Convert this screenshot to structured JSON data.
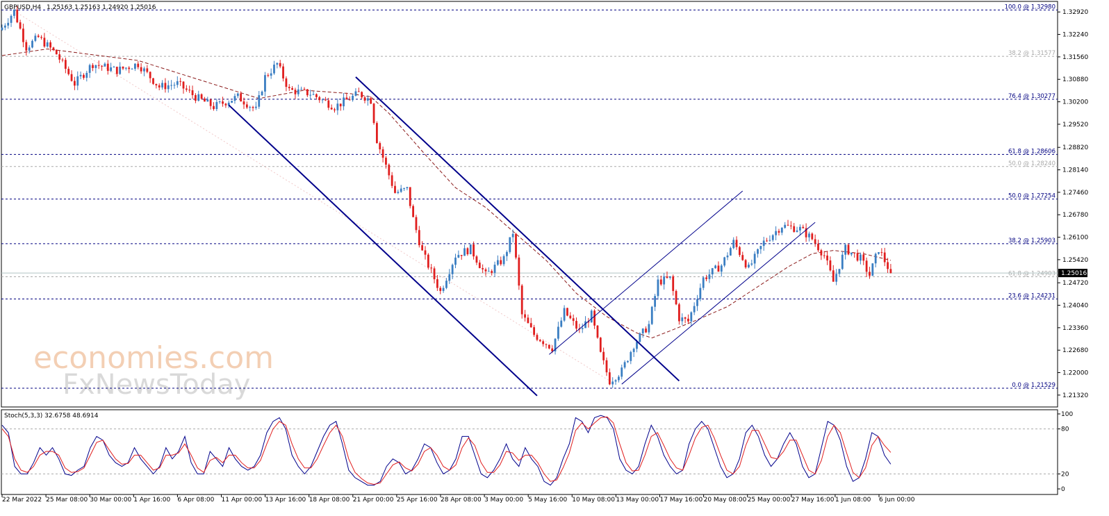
{
  "header": {
    "symbol_tf": "GBPUSD,H4",
    "ohlc": "1.25163 1.25163 1.24920 1.25016"
  },
  "watermark": {
    "line1": "economies.com",
    "line2": "FxNewsToday"
  },
  "colors": {
    "bull": "#3a7ec2",
    "bear": "#e01e1e",
    "ma": "#8b1a1a",
    "channel": "#00008b",
    "fib_blue": "#000080",
    "fib_gray": "#a9a9a9",
    "stoch_main": "#00008b",
    "stoch_signal": "#e01e1e"
  },
  "chart_data": [
    {
      "type": "candlestick",
      "title": "GBPUSD,H4",
      "ylim": [
        1.2096,
        1.3324
      ],
      "y_ticks": [
        "1.32920",
        "1.32240",
        "1.31560",
        "1.30880",
        "1.30200",
        "1.29520",
        "1.28820",
        "1.28140",
        "1.27460",
        "1.26780",
        "1.26100",
        "1.25420",
        "1.24720",
        "1.24040",
        "1.23360",
        "1.22680",
        "1.22000",
        "1.21320"
      ],
      "current_price": "1.25016",
      "x_labels": [
        "22 Mar 2022",
        "25 Mar 08:00",
        "30 Mar 00:00",
        "1 Apr 16:00",
        "6 Apr 08:00",
        "11 Apr 00:00",
        "13 Apr 16:00",
        "18 Apr 08:00",
        "21 Apr 00:00",
        "25 Apr 16:00",
        "28 Apr 08:00",
        "3 May 00:00",
        "5 May 16:00",
        "10 May 08:00",
        "13 May 00:00",
        "17 May 16:00",
        "20 May 08:00",
        "25 May 00:00",
        "27 May 16:00",
        "1 Jun 08:00",
        "6 Jun 00:00"
      ],
      "close_path": [
        {
          "bar": 0,
          "close": 1.3245
        },
        {
          "bar": 4,
          "close": 1.3295
        },
        {
          "bar": 8,
          "close": 1.3185
        },
        {
          "bar": 12,
          "close": 1.3215
        },
        {
          "bar": 18,
          "close": 1.3165
        },
        {
          "bar": 24,
          "close": 1.3075
        },
        {
          "bar": 30,
          "close": 1.3135
        },
        {
          "bar": 38,
          "close": 1.3115
        },
        {
          "bar": 45,
          "close": 1.3135
        },
        {
          "bar": 52,
          "close": 1.3065
        },
        {
          "bar": 58,
          "close": 1.3075
        },
        {
          "bar": 64,
          "close": 1.3035
        },
        {
          "bar": 70,
          "close": 1.3005
        },
        {
          "bar": 78,
          "close": 1.3035
        },
        {
          "bar": 84,
          "close": 1.2995
        },
        {
          "bar": 87,
          "close": 1.3095
        },
        {
          "bar": 91,
          "close": 1.3135
        },
        {
          "bar": 95,
          "close": 1.3055
        },
        {
          "bar": 102,
          "close": 1.3045
        },
        {
          "bar": 110,
          "close": 1.3005
        },
        {
          "bar": 118,
          "close": 1.3045
        },
        {
          "bar": 122,
          "close": 1.3025
        },
        {
          "bar": 124,
          "close": 1.2905
        },
        {
          "bar": 127,
          "close": 1.2825
        },
        {
          "bar": 130,
          "close": 1.2745
        },
        {
          "bar": 134,
          "close": 1.2755
        },
        {
          "bar": 136,
          "close": 1.2665
        },
        {
          "bar": 139,
          "close": 1.2565
        },
        {
          "bar": 145,
          "close": 1.2445
        },
        {
          "bar": 150,
          "close": 1.2555
        },
        {
          "bar": 155,
          "close": 1.2575
        },
        {
          "bar": 160,
          "close": 1.2495
        },
        {
          "bar": 166,
          "close": 1.2545
        },
        {
          "bar": 169,
          "close": 1.2625
        },
        {
          "bar": 172,
          "close": 1.2375
        },
        {
          "bar": 176,
          "close": 1.2315
        },
        {
          "bar": 182,
          "close": 1.2275
        },
        {
          "bar": 186,
          "close": 1.2385
        },
        {
          "bar": 191,
          "close": 1.2325
        },
        {
          "bar": 195,
          "close": 1.2375
        },
        {
          "bar": 198,
          "close": 1.2255
        },
        {
          "bar": 201,
          "close": 1.2175
        },
        {
          "bar": 205,
          "close": 1.2205
        },
        {
          "bar": 209,
          "close": 1.2285
        },
        {
          "bar": 214,
          "close": 1.2345
        },
        {
          "bar": 217,
          "close": 1.2475
        },
        {
          "bar": 221,
          "close": 1.2485
        },
        {
          "bar": 224,
          "close": 1.2365
        },
        {
          "bar": 227,
          "close": 1.2355
        },
        {
          "bar": 232,
          "close": 1.2485
        },
        {
          "bar": 238,
          "close": 1.2525
        },
        {
          "bar": 242,
          "close": 1.2595
        },
        {
          "bar": 247,
          "close": 1.2515
        },
        {
          "bar": 252,
          "close": 1.2595
        },
        {
          "bar": 258,
          "close": 1.2645
        },
        {
          "bar": 264,
          "close": 1.2635
        },
        {
          "bar": 268,
          "close": 1.2605
        },
        {
          "bar": 272,
          "close": 1.2555
        },
        {
          "bar": 275,
          "close": 1.2475
        },
        {
          "bar": 279,
          "close": 1.2575
        },
        {
          "bar": 284,
          "close": 1.2545
        },
        {
          "bar": 287,
          "close": 1.2495
        },
        {
          "bar": 290,
          "close": 1.2575
        },
        {
          "bar": 294,
          "close": 1.25016
        }
      ],
      "moving_average": [
        {
          "bar": 0,
          "value": 1.316
        },
        {
          "bar": 15,
          "value": 1.318
        },
        {
          "bar": 45,
          "value": 1.3145
        },
        {
          "bar": 85,
          "value": 1.303
        },
        {
          "bar": 100,
          "value": 1.3055
        },
        {
          "bar": 115,
          "value": 1.3045
        },
        {
          "bar": 122,
          "value": 1.3035
        },
        {
          "bar": 128,
          "value": 1.2985
        },
        {
          "bar": 140,
          "value": 1.286
        },
        {
          "bar": 150,
          "value": 1.276
        },
        {
          "bar": 160,
          "value": 1.27
        },
        {
          "bar": 170,
          "value": 1.262
        },
        {
          "bar": 180,
          "value": 1.254
        },
        {
          "bar": 190,
          "value": 1.244
        },
        {
          "bar": 200,
          "value": 1.237
        },
        {
          "bar": 210,
          "value": 1.232
        },
        {
          "bar": 215,
          "value": 1.2305
        },
        {
          "bar": 222,
          "value": 1.233
        },
        {
          "bar": 230,
          "value": 1.236
        },
        {
          "bar": 240,
          "value": 1.24
        },
        {
          "bar": 250,
          "value": 1.246
        },
        {
          "bar": 260,
          "value": 1.252
        },
        {
          "bar": 268,
          "value": 1.256
        },
        {
          "bar": 275,
          "value": 1.257
        },
        {
          "bar": 285,
          "value": 1.256
        },
        {
          "bar": 294,
          "value": 1.254
        }
      ],
      "trendlines": [
        {
          "from": {
            "bar": 75,
            "price": 1.301
          },
          "to": {
            "bar": 177,
            "price": 1.213
          }
        },
        {
          "from": {
            "bar": 117,
            "price": 1.3095
          },
          "to": {
            "bar": 224,
            "price": 1.2175
          }
        },
        {
          "from": {
            "bar": 181,
            "price": 1.2255
          },
          "to": {
            "bar": 245,
            "price": 1.275
          }
        },
        {
          "from": {
            "bar": 205,
            "price": 1.2165
          },
          "to": {
            "bar": 269,
            "price": 1.2655
          }
        }
      ],
      "fib_levels": [
        {
          "label": "100.0 @ 1.32980",
          "value": 1.3298,
          "style": "blue"
        },
        {
          "label": "38.2 @ 1.31577",
          "value": 1.31577,
          "style": "gray"
        },
        {
          "label": "76.4 @ 1.30277",
          "value": 1.30277,
          "style": "blue"
        },
        {
          "label": "61.8 @ 1.28606",
          "value": 1.28606,
          "style": "blue"
        },
        {
          "label": "50.0 @ 1.28240",
          "value": 1.2824,
          "style": "gray"
        },
        {
          "label": "50.0 @ 1.27254",
          "value": 1.27254,
          "style": "blue"
        },
        {
          "label": "38.2 @ 1.25903",
          "value": 1.25903,
          "style": "blue"
        },
        {
          "label": "61.8 @ 1.24903",
          "value": 1.24903,
          "style": "gray"
        },
        {
          "label": "23.6 @ 1.24231",
          "value": 1.24231,
          "style": "blue"
        },
        {
          "label": "0.0 @ 1.21529",
          "value": 1.21529,
          "style": "blue"
        }
      ]
    },
    {
      "type": "line",
      "title": "Stoch(5,3,3) 32.6758 48.6914",
      "ylim": [
        0,
        100
      ],
      "y_ticks": [
        "100",
        "80",
        "20",
        "0"
      ],
      "levels": [
        80,
        20
      ],
      "series": [
        {
          "name": "main",
          "values": [
            85,
            75,
            30,
            20,
            20,
            35,
            55,
            45,
            55,
            40,
            20,
            18,
            25,
            30,
            55,
            70,
            65,
            45,
            35,
            30,
            35,
            55,
            40,
            30,
            20,
            30,
            55,
            40,
            50,
            70,
            35,
            20,
            20,
            50,
            40,
            30,
            55,
            40,
            30,
            25,
            30,
            45,
            75,
            90,
            95,
            80,
            45,
            30,
            20,
            30,
            50,
            70,
            85,
            90,
            60,
            25,
            15,
            10,
            5,
            5,
            10,
            30,
            40,
            35,
            20,
            25,
            40,
            60,
            55,
            35,
            20,
            25,
            40,
            70,
            70,
            45,
            20,
            15,
            25,
            40,
            60,
            40,
            30,
            55,
            40,
            30,
            10,
            5,
            15,
            40,
            60,
            95,
            90,
            75,
            95,
            98,
            95,
            80,
            40,
            25,
            20,
            30,
            60,
            85,
            70,
            45,
            30,
            20,
            25,
            60,
            80,
            90,
            80,
            55,
            30,
            15,
            20,
            40,
            75,
            85,
            70,
            45,
            30,
            40,
            60,
            75,
            60,
            30,
            15,
            20,
            55,
            90,
            85,
            65,
            30,
            10,
            15,
            40,
            75,
            70,
            45,
            33
          ]
        },
        {
          "name": "signal",
          "values": [
            80,
            70,
            40,
            25,
            22,
            30,
            45,
            50,
            50,
            45,
            28,
            22,
            23,
            28,
            45,
            62,
            65,
            52,
            40,
            33,
            34,
            45,
            45,
            35,
            25,
            28,
            45,
            45,
            48,
            60,
            45,
            28,
            22,
            38,
            42,
            35,
            45,
            45,
            35,
            28,
            28,
            38,
            60,
            80,
            90,
            85,
            60,
            40,
            28,
            28,
            40,
            58,
            75,
            85,
            70,
            40,
            22,
            14,
            8,
            6,
            8,
            20,
            32,
            36,
            28,
            24,
            33,
            50,
            55,
            45,
            30,
            25,
            32,
            55,
            68,
            58,
            35,
            22,
            22,
            32,
            50,
            48,
            38,
            45,
            45,
            35,
            20,
            10,
            12,
            28,
            48,
            78,
            88,
            80,
            88,
            95,
            96,
            88,
            60,
            35,
            24,
            25,
            45,
            70,
            75,
            58,
            40,
            28,
            25,
            45,
            68,
            82,
            85,
            68,
            45,
            25,
            20,
            30,
            58,
            78,
            78,
            60,
            42,
            40,
            50,
            65,
            65,
            45,
            25,
            20,
            38,
            70,
            85,
            75,
            48,
            22,
            15,
            28,
            58,
            70,
            58,
            48.7
          ]
        }
      ]
    }
  ]
}
